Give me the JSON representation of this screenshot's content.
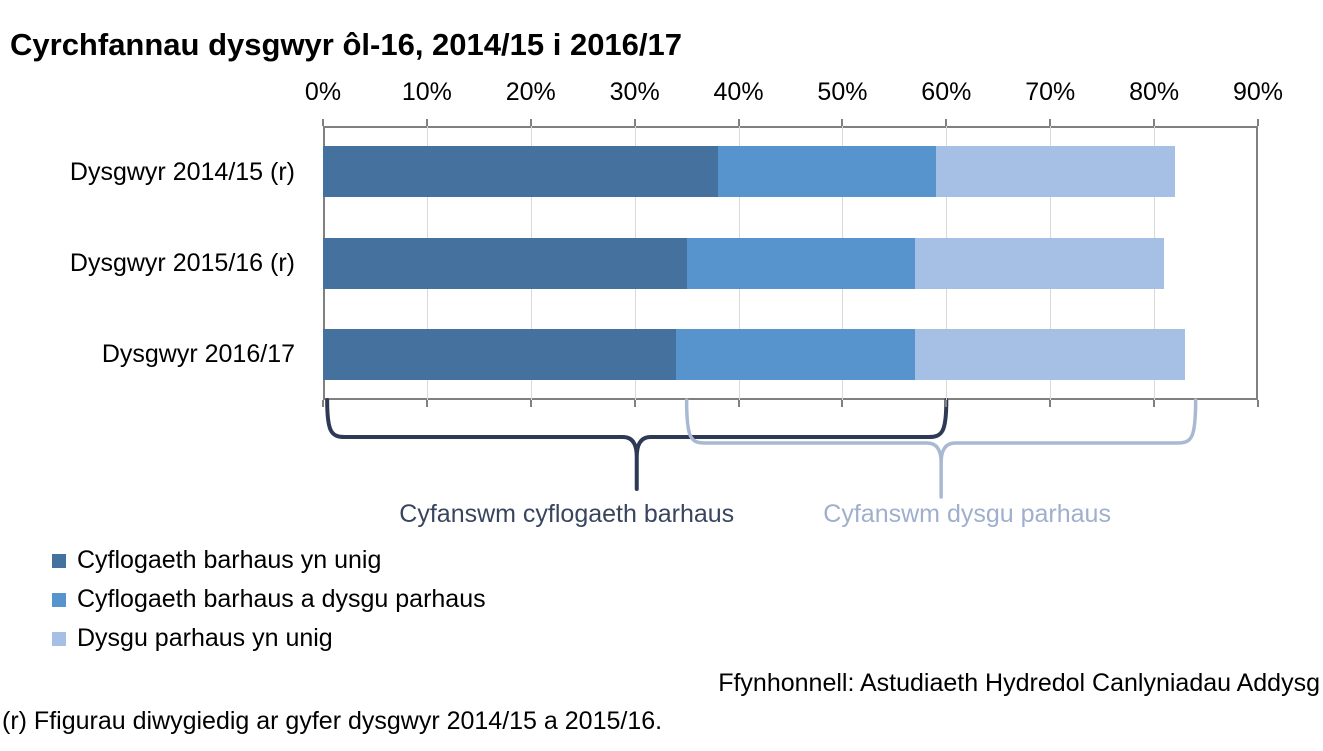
{
  "title": "Cyrchfannau dysgwyr ôl-16, 2014/15 i 2016/17",
  "chart_data": {
    "type": "bar",
    "orientation": "horizontal-stacked",
    "title": "Cyrchfannau dysgwyr ôl-16, 2014/15 i 2016/17",
    "categories": [
      "Dysgwyr 2014/15 (r)",
      "Dysgwyr 2015/16 (r)",
      "Dysgwyr 2016/17"
    ],
    "series": [
      {
        "name": "Cyflogaeth barhaus yn unig",
        "color": "#44719D",
        "values": [
          38,
          35,
          34
        ]
      },
      {
        "name": "Cyflogaeth barhaus a dysgu parhaus",
        "color": "#5794CE",
        "values": [
          21,
          22,
          23
        ]
      },
      {
        "name": "Dysgu parhaus yn unig",
        "color": "#A5C0E4",
        "values": [
          23,
          24,
          26
        ]
      }
    ],
    "x_ticks": [
      "0%",
      "10%",
      "20%",
      "30%",
      "40%",
      "50%",
      "60%",
      "70%",
      "80%",
      "90%"
    ],
    "xlim": [
      0,
      90
    ],
    "grid": true,
    "legend_position": "bottom-left"
  },
  "annotations": {
    "braces": [
      {
        "label": "Cyfanswm cyflogaeth barhaus",
        "from_pct": 0.4,
        "to_pct": 60,
        "brace_color": "#2E3A55",
        "label_color": "#39455E"
      },
      {
        "label": "Cyfanswm dysgu parhaus",
        "from_pct": 35,
        "to_pct": 84,
        "brace_color": "#A9B9D2",
        "label_color": "#9FAFCD"
      }
    ]
  },
  "footer": {
    "source": "Ffynhonnell: Astudiaeth Hydredol Canlyniadau Addysg",
    "note": "(r) Ffigurau diwygiedig ar gyfer dysgwyr 2014/15 a 2015/16."
  },
  "colors": {
    "plot_border": "#808080",
    "gridline": "#D9D9D9",
    "background": "#FFFFFF"
  }
}
